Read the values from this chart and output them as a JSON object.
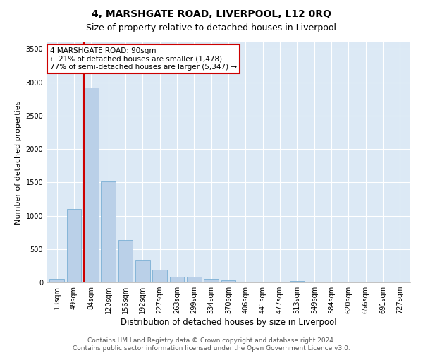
{
  "title": "4, MARSHGATE ROAD, LIVERPOOL, L12 0RQ",
  "subtitle": "Size of property relative to detached houses in Liverpool",
  "xlabel": "Distribution of detached houses by size in Liverpool",
  "ylabel": "Number of detached properties",
  "categories": [
    "13sqm",
    "49sqm",
    "84sqm",
    "120sqm",
    "156sqm",
    "192sqm",
    "227sqm",
    "263sqm",
    "299sqm",
    "334sqm",
    "370sqm",
    "406sqm",
    "441sqm",
    "477sqm",
    "513sqm",
    "549sqm",
    "584sqm",
    "620sqm",
    "656sqm",
    "691sqm",
    "727sqm"
  ],
  "values": [
    50,
    1100,
    2920,
    1510,
    640,
    340,
    190,
    90,
    85,
    55,
    35,
    0,
    0,
    0,
    25,
    0,
    0,
    0,
    0,
    0,
    0
  ],
  "bar_color": "#bad0e8",
  "bar_edge_color": "#7aafd4",
  "vline_bar_index": 2,
  "vline_color": "#cc0000",
  "annotation_text": "4 MARSHGATE ROAD: 90sqm\n← 21% of detached houses are smaller (1,478)\n77% of semi-detached houses are larger (5,347) →",
  "annotation_box_facecolor": "#ffffff",
  "annotation_box_edgecolor": "#cc0000",
  "ylim": [
    0,
    3600
  ],
  "yticks": [
    0,
    500,
    1000,
    1500,
    2000,
    2500,
    3000,
    3500
  ],
  "footer1": "Contains HM Land Registry data © Crown copyright and database right 2024.",
  "footer2": "Contains public sector information licensed under the Open Government Licence v3.0.",
  "bg_color": "#dce9f5",
  "title_fontsize": 10,
  "subtitle_fontsize": 9,
  "xlabel_fontsize": 8.5,
  "ylabel_fontsize": 8,
  "tick_fontsize": 7,
  "footer_fontsize": 6.5,
  "annotation_fontsize": 7.5
}
